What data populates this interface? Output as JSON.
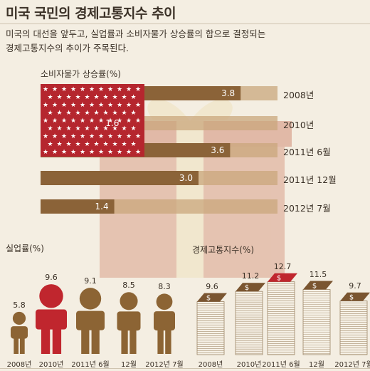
{
  "header": {
    "title": "미국 국민의 경제고통지수 추이",
    "subtitle_line1": "미국의 대선을 앞두고, 실업률과 소비자물가 상승률의 합으로 결정되는",
    "subtitle_line2": "경제고통지수의 추이가 주목된다."
  },
  "colors": {
    "background": "#f4eee2",
    "bar_brown": "#8b6338",
    "bar_light": "#c9a77c",
    "flag_red": "#b5262e",
    "person_brown": "#8c6434",
    "person_red": "#c0262e",
    "book_brown": "#7a5530",
    "book_red": "#c0262e"
  },
  "chart_data": [
    {
      "type": "bar",
      "orientation": "horizontal",
      "title": "소비자물가 상승률(%)",
      "categories": [
        "2008년",
        "2010년",
        "2011년 6월",
        "2011년 12월",
        "2012년 7월"
      ],
      "values": [
        3.8,
        1.6,
        3.6,
        3.0,
        1.4
      ],
      "value_labels": [
        "3.8",
        "1.6",
        "3.6",
        "3.0",
        "1.4"
      ],
      "xlim": [
        0,
        4.5
      ]
    },
    {
      "type": "bar",
      "title": "실업률(%)",
      "categories": [
        "2008년",
        "2010년",
        "2011년 6월",
        "12월",
        "2012년 7월"
      ],
      "values": [
        5.8,
        9.6,
        9.1,
        8.5,
        8.3
      ],
      "value_labels": [
        "5.8",
        "9.6",
        "9.1",
        "8.5",
        "8.3"
      ],
      "highlight": "2010년",
      "ylim": [
        0,
        10
      ]
    },
    {
      "type": "bar",
      "title": "경제고통지수(%)",
      "categories": [
        "2008년",
        "2010년",
        "2011년 6월",
        "12월",
        "2012년 7월"
      ],
      "values": [
        9.6,
        11.2,
        12.7,
        11.5,
        9.7
      ],
      "value_labels": [
        "9.6",
        "11.2",
        "12.7",
        "11.5",
        "9.7"
      ],
      "highlight": "2011년 6월",
      "icon_symbol": "$",
      "ylim": [
        0,
        13
      ]
    }
  ]
}
